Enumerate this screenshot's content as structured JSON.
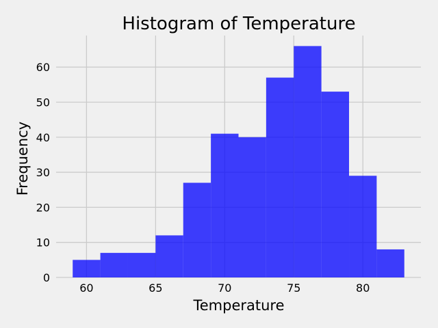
{
  "chart_data": {
    "type": "bar",
    "title": "Histogram of Temperature",
    "xlabel": "Temperature",
    "ylabel": "Frequency",
    "bin_edges": [
      59,
      61,
      63,
      65,
      67,
      69,
      71,
      73,
      75,
      77,
      79,
      81,
      83
    ],
    "values": [
      5,
      7,
      7,
      12,
      27,
      41,
      40,
      57,
      66,
      53,
      29,
      8
    ],
    "xlim": [
      57.8,
      84.2
    ],
    "ylim": [
      0,
      69
    ],
    "xticks": [
      "60",
      "65",
      "70",
      "75",
      "80"
    ],
    "yticks": [
      "0",
      "10",
      "20",
      "30",
      "40",
      "50",
      "60"
    ],
    "grid": true,
    "bar_color": "#0000ff",
    "background_color": "#f0f0f0"
  }
}
